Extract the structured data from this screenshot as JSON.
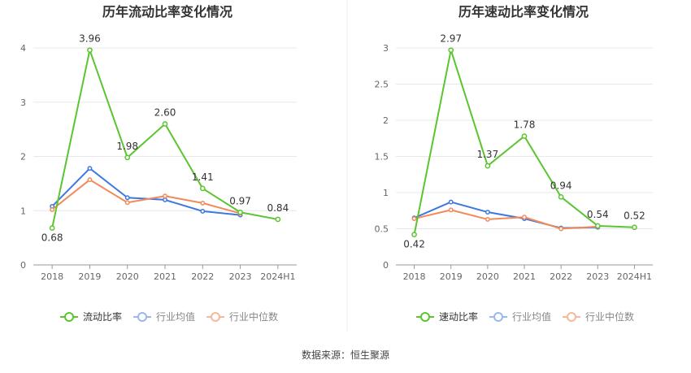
{
  "source": {
    "label": "数据来源：",
    "name": "恒生聚源"
  },
  "colors": {
    "current": "#5ac52e",
    "avg": "#3d78e0",
    "median": "#f28a5a",
    "axis": "#555555",
    "grid": "#e8e8e8"
  },
  "chart_data": [
    {
      "type": "line",
      "title": "历年流动比率变化情况",
      "categories": [
        "2018",
        "2019",
        "2020",
        "2021",
        "2022",
        "2023",
        "2024H1"
      ],
      "ylim": [
        0,
        4
      ],
      "yticks": [
        "0",
        "1",
        "2",
        "3",
        "4"
      ],
      "ytick_values": [
        0,
        1,
        2,
        3,
        4
      ],
      "grid": true,
      "legend": "bottom",
      "series": [
        {
          "name": "流动比率",
          "values": [
            0.68,
            3.96,
            1.98,
            2.6,
            1.41,
            0.97,
            0.84
          ],
          "labels": [
            "0.68",
            "3.96",
            "1.98",
            "2.60",
            "1.41",
            "0.97",
            "0.84"
          ],
          "color": "#5ac52e"
        },
        {
          "name": "行业均值",
          "values": [
            1.08,
            1.78,
            1.24,
            1.2,
            0.99,
            0.92,
            null
          ],
          "color": "#3d78e0"
        },
        {
          "name": "行业中位数",
          "values": [
            1.02,
            1.57,
            1.15,
            1.27,
            1.14,
            0.95,
            null
          ],
          "color": "#f28a5a"
        }
      ]
    },
    {
      "type": "line",
      "title": "历年速动比率变化情况",
      "categories": [
        "2018",
        "2019",
        "2020",
        "2021",
        "2022",
        "2023",
        "2024H1"
      ],
      "ylim": [
        0,
        3
      ],
      "yticks": [
        "0",
        "0.5",
        "1",
        "1.5",
        "2",
        "2.5",
        "3"
      ],
      "ytick_values": [
        0,
        0.5,
        1,
        1.5,
        2,
        2.5,
        3
      ],
      "grid": true,
      "legend": "bottom",
      "series": [
        {
          "name": "速动比率",
          "values": [
            0.42,
            2.97,
            1.37,
            1.78,
            0.94,
            0.54,
            0.52
          ],
          "labels": [
            "0.42",
            "2.97",
            "1.37",
            "1.78",
            "0.94",
            "0.54",
            "0.52"
          ],
          "color": "#5ac52e"
        },
        {
          "name": "行业均值",
          "values": [
            0.65,
            0.87,
            0.73,
            0.64,
            0.51,
            0.52,
            null
          ],
          "color": "#3d78e0"
        },
        {
          "name": "行业中位数",
          "values": [
            0.64,
            0.76,
            0.63,
            0.66,
            0.5,
            0.53,
            null
          ],
          "color": "#f28a5a"
        }
      ]
    }
  ]
}
